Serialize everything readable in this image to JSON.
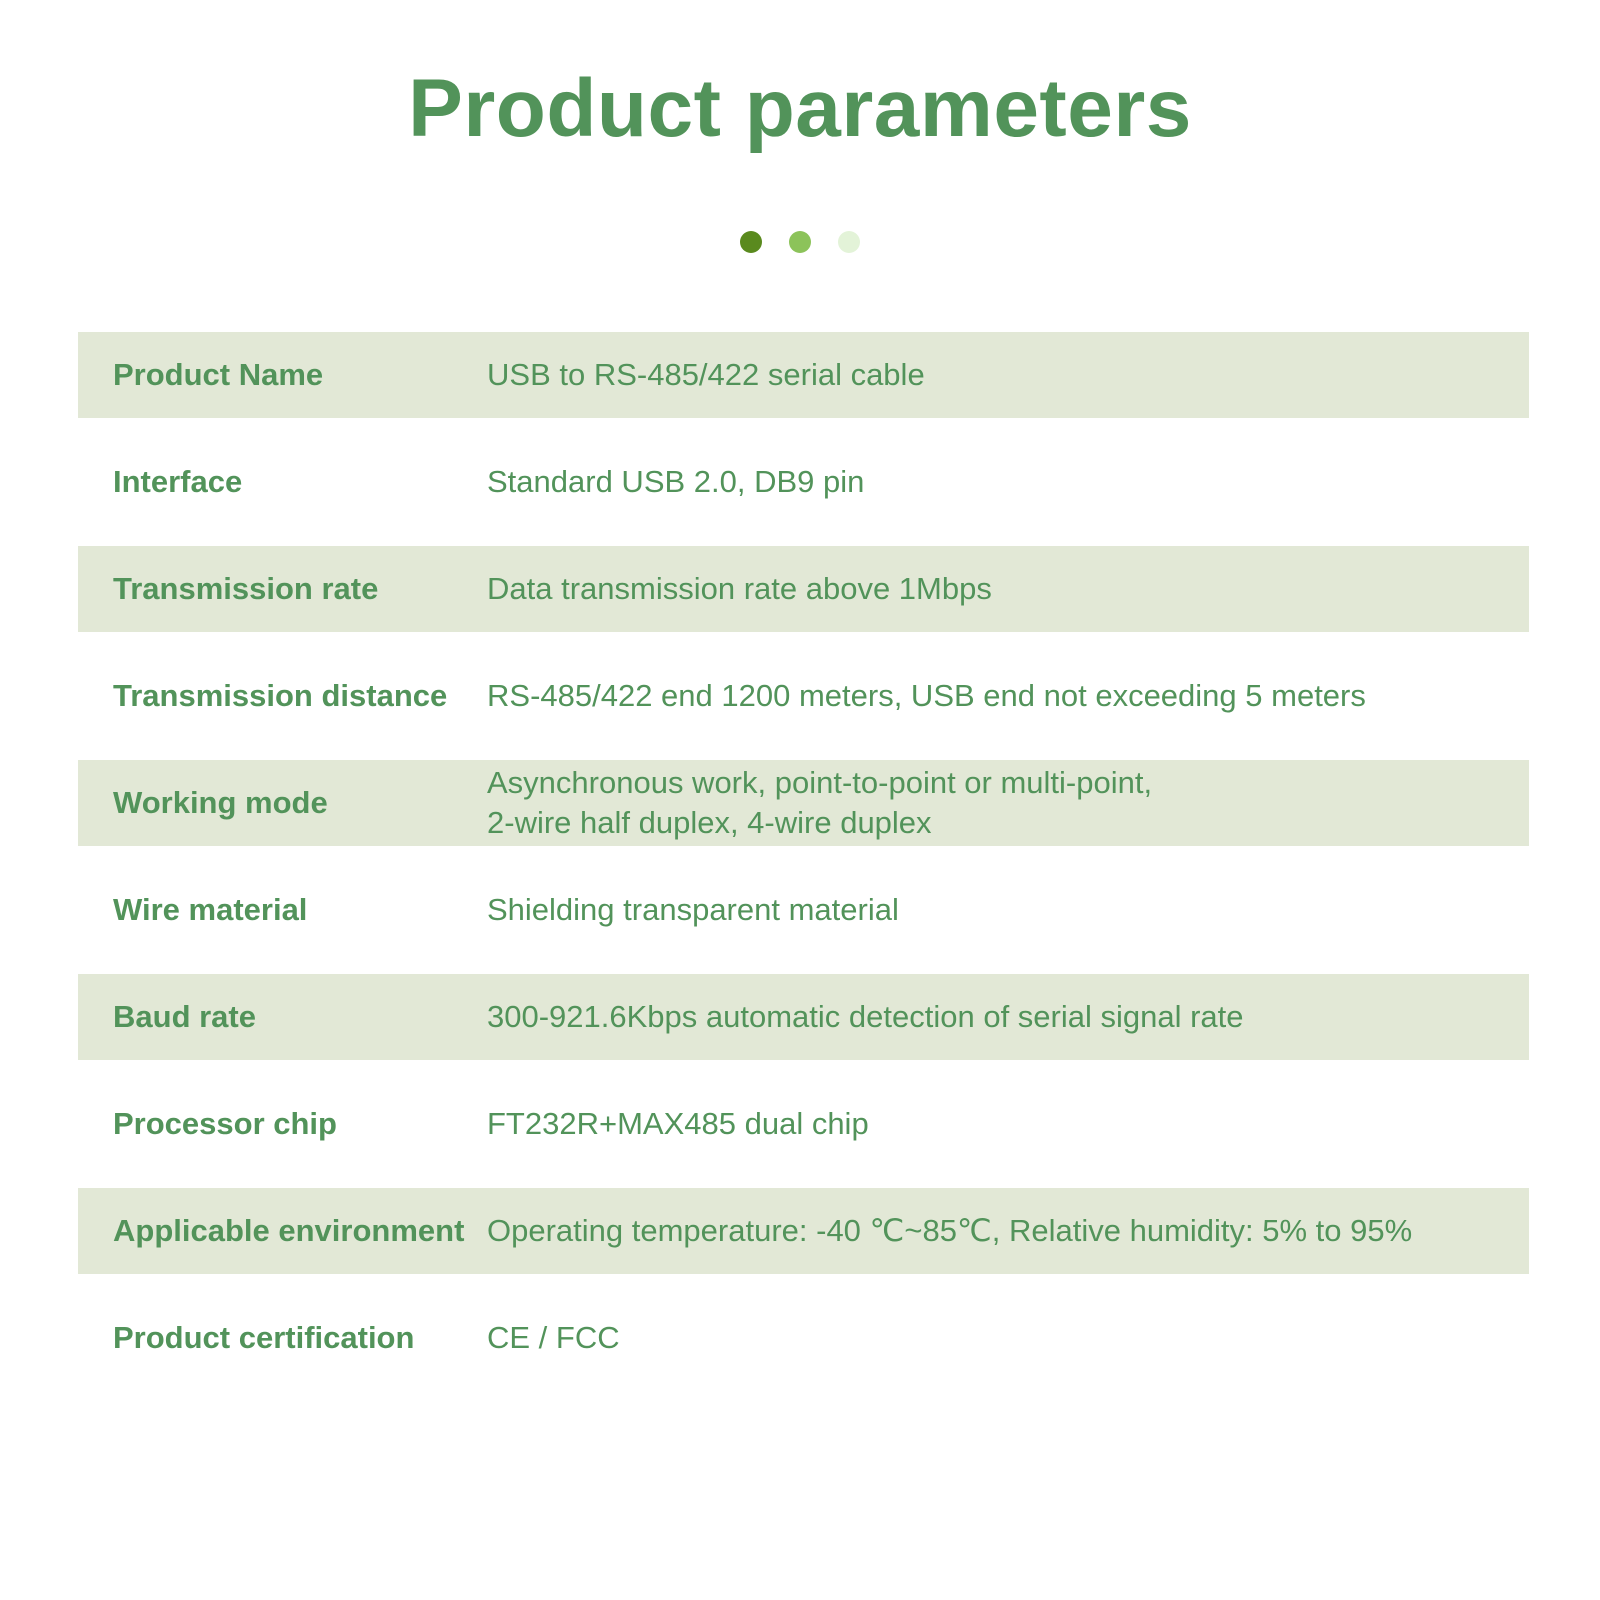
{
  "title": "Product parameters",
  "dots": [
    {
      "color": "#5a8a1e"
    },
    {
      "color": "#8cc35a"
    },
    {
      "color": "#e3f3d8"
    }
  ],
  "colors": {
    "text": "#52935a",
    "row_shade": "#e2e8d6"
  },
  "rows": [
    {
      "label": "Product Name",
      "value": "USB to RS-485/422 serial cable"
    },
    {
      "label": "Interface",
      "value": "Standard USB 2.0, DB9 pin"
    },
    {
      "label": "Transmission rate",
      "value": "Data transmission rate above 1Mbps"
    },
    {
      "label": "Transmission distance",
      "value": "RS-485/422 end 1200 meters, USB end not exceeding 5 meters"
    },
    {
      "label": "Working mode",
      "value": "Asynchronous work, point-to-point or multi-point,",
      "value2": "2-wire half duplex, 4-wire duplex"
    },
    {
      "label": "Wire material",
      "value": "Shielding transparent material"
    },
    {
      "label": "Baud rate",
      "value": "300-921.6Kbps automatic detection of serial signal rate"
    },
    {
      "label": "Processor chip",
      "value": "FT232R+MAX485 dual chip"
    },
    {
      "label": "Applicable environment",
      "value": "Operating temperature: -40 ℃~85℃, Relative humidity: 5% to 95%"
    },
    {
      "label": "Product certification",
      "value": "CE / FCC"
    }
  ]
}
